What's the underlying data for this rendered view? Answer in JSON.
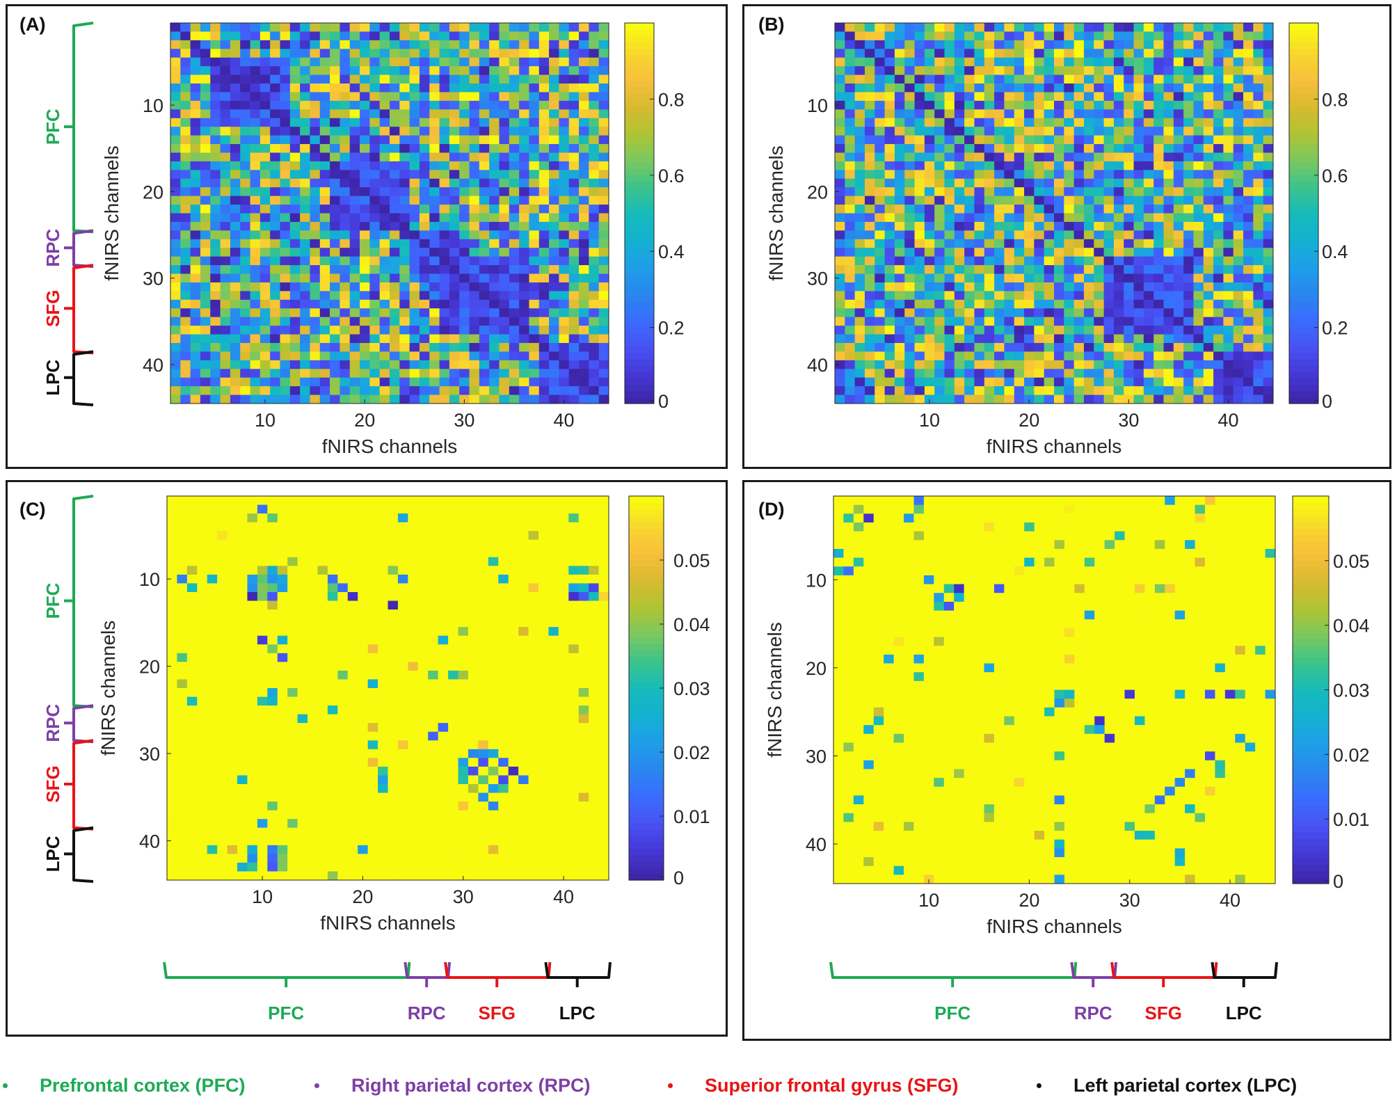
{
  "colors": {
    "pfc": "#1daa55",
    "rpc": "#7d3fa6",
    "sfg": "#e81416",
    "lpc": "#111111",
    "axis_text": "#262626",
    "frame": "#1a1a1a",
    "parula": [
      "#3e26a8",
      "#4538d7",
      "#4852f4",
      "#3a6cfe",
      "#2887ee",
      "#1f9ee8",
      "#13b1d0",
      "#16bbba",
      "#3cc38a",
      "#7bc85f",
      "#b0c434",
      "#d8ba30",
      "#f8bf3b",
      "#f8d82d",
      "#f9fb0e"
    ]
  },
  "regions": [
    {
      "key": "pfc",
      "abbr": "PFC",
      "name": "Prefrontal cortex (PFC)",
      "from": 1,
      "to": 24
    },
    {
      "key": "rpc",
      "abbr": "RPC",
      "name": "Right parietal cortex (RPC)",
      "from": 25,
      "to": 28
    },
    {
      "key": "sfg",
      "abbr": "SFG",
      "name": "Superior frontal gyrus (SFG)",
      "from": 29,
      "to": 38
    },
    {
      "key": "lpc",
      "abbr": "LPC",
      "name": "Left parietal cortex (LPC)",
      "from": 39,
      "to": 44
    }
  ],
  "panels": [
    {
      "label": "(A)",
      "xlabel": "fNIRS channels",
      "ylabel": "fNIRS channels",
      "colorbar_ticks": [
        "0",
        "0.2",
        "0.4",
        "0.6",
        "0.8"
      ],
      "colorbar_values": [
        0,
        0.2,
        0.4,
        0.6,
        0.8
      ]
    },
    {
      "label": "(B)",
      "xlabel": "fNIRS channels",
      "ylabel": "fNIRS channels",
      "colorbar_ticks": [
        "0",
        "0.2",
        "0.4",
        "0.6",
        "0.8"
      ],
      "colorbar_values": [
        0,
        0.2,
        0.4,
        0.6,
        0.8
      ]
    },
    {
      "label": "(C)",
      "xlabel": "fNIRS channels",
      "ylabel": "fNIRS channels",
      "colorbar_ticks": [
        "0",
        "0.01",
        "0.02",
        "0.03",
        "0.04",
        "0.05"
      ],
      "colorbar_values": [
        0,
        0.01,
        0.02,
        0.03,
        0.04,
        0.05
      ]
    },
    {
      "label": "(D)",
      "xlabel": "fNIRS channels",
      "ylabel": "fNIRS channels",
      "colorbar_ticks": [
        "0",
        "0.01",
        "0.02",
        "0.03",
        "0.04",
        "0.05"
      ],
      "colorbar_values": [
        0,
        0.01,
        0.02,
        0.03,
        0.04,
        0.05
      ]
    }
  ],
  "chart_data": [
    {
      "panel": "(A)",
      "type": "heatmap",
      "title": "(A)",
      "n_channels": 44,
      "xlabel": "fNIRS channels",
      "ylabel": "fNIRS channels",
      "xticks": [
        10,
        20,
        30,
        40
      ],
      "yticks": [
        10,
        20,
        30,
        40
      ],
      "clim": [
        0,
        1
      ],
      "low_blocks": [
        [
          5,
          12,
          5,
          12
        ],
        [
          17,
          24,
          17,
          24
        ],
        [
          25,
          29,
          25,
          29
        ],
        [
          28,
          36,
          28,
          36
        ],
        [
          38,
          44,
          38,
          44
        ]
      ],
      "value_range": [
        0,
        1
      ]
    },
    {
      "panel": "(B)",
      "type": "heatmap",
      "title": "(B)",
      "n_channels": 44,
      "xlabel": "fNIRS channels",
      "ylabel": "fNIRS channels",
      "xticks": [
        10,
        20,
        30,
        40
      ],
      "yticks": [
        10,
        20,
        30,
        40
      ],
      "clim": [
        0,
        1
      ],
      "low_blocks": [
        [
          28,
          36,
          28,
          36
        ],
        [
          39,
          44,
          39,
          44
        ]
      ],
      "value_range": [
        0,
        1
      ]
    },
    {
      "panel": "(C)",
      "type": "heatmap",
      "title": "(C)",
      "n_channels": 44,
      "xlabel": "fNIRS channels",
      "ylabel": "fNIRS channels",
      "xticks": [
        10,
        20,
        30,
        40
      ],
      "yticks": [
        10,
        20,
        30,
        40
      ],
      "clim": [
        0,
        0.06
      ],
      "background_value": 0.06,
      "significant_cells": [
        [
          9,
          10
        ],
        [
          10,
          11
        ],
        [
          11,
          12
        ],
        [
          12,
          10
        ],
        [
          10,
          12
        ],
        [
          11,
          9
        ],
        [
          9,
          12
        ],
        [
          12,
          9
        ],
        [
          10,
          10
        ],
        [
          11,
          11
        ],
        [
          3,
          9
        ],
        [
          3,
          11
        ],
        [
          2,
          10
        ],
        [
          17,
          10
        ],
        [
          18,
          11
        ],
        [
          19,
          12
        ],
        [
          17,
          12
        ],
        [
          24,
          10
        ],
        [
          30,
          31
        ],
        [
          31,
          32
        ],
        [
          32,
          33
        ],
        [
          33,
          34
        ],
        [
          32,
          30
        ],
        [
          34,
          31
        ],
        [
          31,
          34
        ],
        [
          30,
          33
        ],
        [
          36,
          33
        ],
        [
          35,
          32
        ],
        [
          41,
          11
        ],
        [
          42,
          11
        ],
        [
          43,
          11
        ],
        [
          41,
          9
        ],
        [
          42,
          9
        ],
        [
          43,
          9
        ],
        [
          11,
          41
        ],
        [
          11,
          42
        ],
        [
          11,
          43
        ],
        [
          12,
          41
        ],
        [
          12,
          42
        ],
        [
          12,
          43
        ],
        [
          24,
          3
        ],
        [
          33,
          8
        ],
        [
          23,
          13
        ],
        [
          21,
          29
        ],
        [
          27,
          28
        ]
      ],
      "value_range": [
        0,
        0.06
      ]
    },
    {
      "panel": "(D)",
      "type": "heatmap",
      "title": "(D)",
      "n_channels": 44,
      "xlabel": "fNIRS channels",
      "ylabel": "fNIRS channels",
      "xticks": [
        10,
        20,
        30,
        40
      ],
      "yticks": [
        10,
        20,
        30,
        40
      ],
      "clim": [
        0,
        0.06
      ],
      "background_value": 0.06,
      "significant_cells": [
        [
          9,
          1
        ],
        [
          9,
          2
        ],
        [
          2,
          3
        ],
        [
          3,
          4
        ],
        [
          10,
          10
        ],
        [
          11,
          12
        ],
        [
          12,
          13
        ],
        [
          13,
          11
        ],
        [
          23,
          23
        ],
        [
          24,
          24
        ],
        [
          27,
          27
        ],
        [
          28,
          28
        ],
        [
          26,
          27
        ],
        [
          27,
          26
        ],
        [
          32,
          36
        ],
        [
          33,
          35
        ],
        [
          34,
          34
        ],
        [
          35,
          33
        ],
        [
          36,
          32
        ],
        [
          37,
          37
        ],
        [
          38,
          30
        ],
        [
          39,
          31
        ],
        [
          39,
          32
        ],
        [
          23,
          38
        ],
        [
          23,
          41
        ],
        [
          23,
          44
        ],
        [
          24,
          23
        ],
        [
          30,
          23
        ],
        [
          35,
          23
        ],
        [
          40,
          23
        ],
        [
          3,
          8
        ],
        [
          17,
          11
        ]
      ],
      "value_range": [
        0,
        0.06
      ]
    }
  ],
  "legend": {
    "items": [
      {
        "key": "pfc",
        "text": "Prefrontal cortex (PFC)"
      },
      {
        "key": "rpc",
        "text": "Right parietal cortex (RPC)"
      },
      {
        "key": "sfg",
        "text": "Superior frontal gyrus (SFG)"
      },
      {
        "key": "lpc",
        "text": "Left parietal cortex (LPC)"
      }
    ]
  }
}
